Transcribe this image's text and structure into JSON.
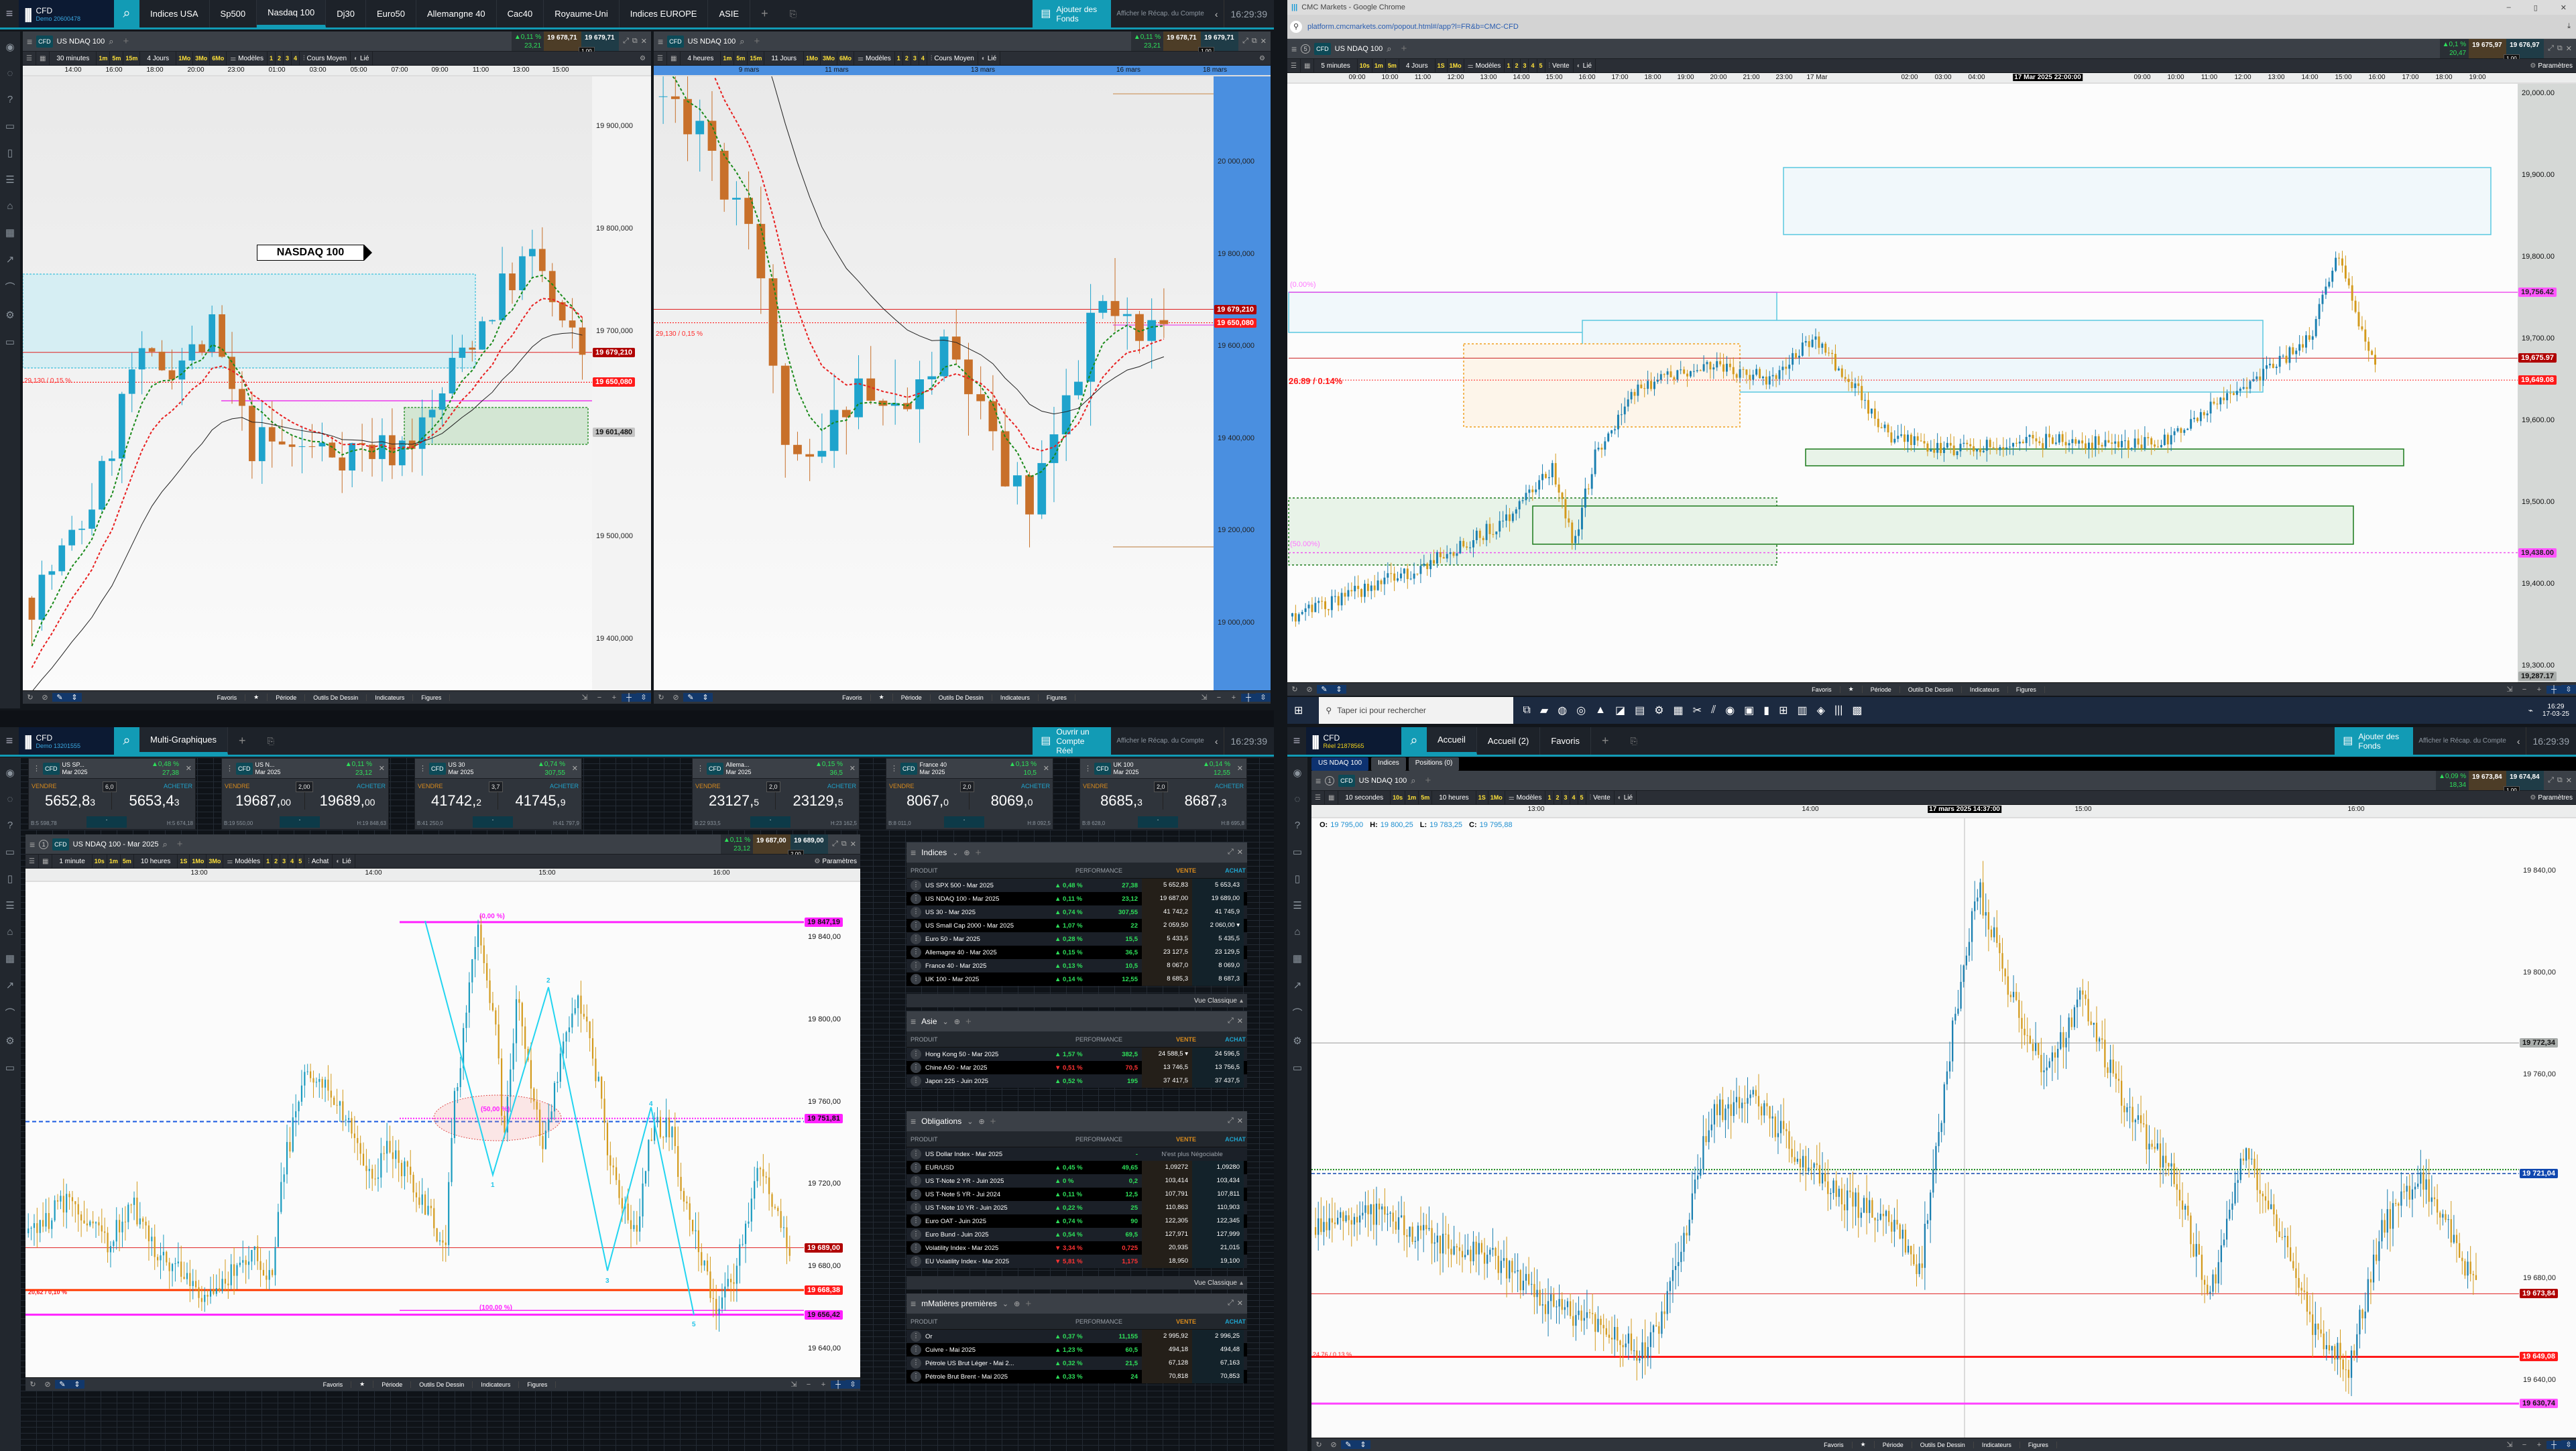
{
  "tl": {
    "brand": "CFD",
    "account": "Demo 20600478",
    "account_color": "#3aa7e0",
    "tabs": [
      "Indices USA",
      "Sp500",
      "Nasdaq 100",
      "Dj30",
      "Euro50",
      "Allemangne 40",
      "Cac40",
      "Royaume-Uni",
      "Indices EUROPE",
      "ASIE"
    ],
    "active_tab": 2,
    "fund_button": "Ajouter des Fonds",
    "account_summary": "Afficher le Récap. du Compte",
    "clock": "16:29:39"
  },
  "bl": {
    "brand": "CFD",
    "account": "Demo 13201555",
    "account_color": "#3aa7e0",
    "tabs": [
      "Multi-Graphiques"
    ],
    "active_tab": 0,
    "fund_button": "Ouvrir un Compte Réel",
    "account_summary": "Afficher le Récap. du Compte",
    "clock": "16:29:39"
  },
  "br": {
    "brand": "CFD",
    "account": "Réel 21878565",
    "account_color": "#f2d21b",
    "tabs": [
      "Accueil",
      "Accueil (2)",
      "Favoris"
    ],
    "active_tab": 0,
    "fund_button": "Ajouter des Fonds",
    "account_summary": "Afficher le Récap. du Compte",
    "clock": "16:29:39",
    "subtabs": [
      "US NDAQ 100",
      "Indices",
      "Positions (0)"
    ]
  },
  "browser": {
    "title": "CMC Markets - Google Chrome",
    "url": "platform.cmcmarkets.com/popout.html#/app?l=FR&b=CMC-CFD"
  },
  "taskbar": {
    "search_placeholder": "Taper ici pour rechercher",
    "time": "16:29",
    "date": "17-03-25"
  },
  "chart_toolbar": [
    "Favoris",
    "Période",
    "Outils De Dessin",
    "Indicateurs",
    "Figures"
  ],
  "colors": {
    "accent": "#129bb5",
    "up_candle": "#1fa3cc",
    "down_candle": "#c8702a",
    "gain": "#2ee05a",
    "loss": "#ff3333",
    "magenta": "#ff33ff"
  },
  "charts": {
    "c1": {
      "number": "",
      "product": "US NDAQ 100",
      "change": "▲0,11 %",
      "points": "23,21",
      "sell": "19 678,71",
      "buy": "19 679,71",
      "qty": "1,00",
      "period": "30 minutes",
      "intervals": [
        "1m",
        "5m",
        "15m"
      ],
      "range": "4 Jours",
      "ranges": [
        "1Mo",
        "3Mo",
        "6Mo"
      ],
      "models": "Modèles",
      "numbers": [
        "1",
        "2",
        "3",
        "4"
      ],
      "price_type": "Cours Moyen",
      "linked": "Lié",
      "settings": "",
      "time_labels": [
        "14:00",
        "16:00",
        "18:00",
        "20:00",
        "23:00",
        "01:00",
        "03:00",
        "05:00",
        "07:00",
        "09:00",
        "11:00",
        "13:00",
        "15:00"
      ],
      "time_highlight": "",
      "axis_labels": [
        "19 900,000",
        "19 800,000",
        "19 700,000",
        "19 500,000",
        "19 400,000"
      ],
      "tags": [
        {
          "text": "19 679,210",
          "bg": "#b00000"
        },
        {
          "text": "19 650,080",
          "bg": "#ff1a1a"
        },
        {
          "text": "19 601,480",
          "bg": "#c4c4c4",
          "fg": "#111"
        }
      ],
      "notes": [
        {
          "text": "29,130 / 0,15 %",
          "color": "#ff2a2a"
        }
      ],
      "annotation": "NASDAQ 100"
    },
    "c2": {
      "number": "",
      "product": "US NDAQ 100",
      "change": "▲0,11 %",
      "points": "23,21",
      "sell": "19 678,71",
      "buy": "19 679,71",
      "qty": "1,00",
      "period": "4 heures",
      "intervals": [
        "1m",
        "5m",
        "15m"
      ],
      "range": "11 Jours",
      "ranges": [
        "1Mo",
        "3Mo",
        "6Mo"
      ],
      "models": "Modèles",
      "numbers": [
        "1",
        "2",
        "3",
        "4"
      ],
      "price_type": "Cours Moyen",
      "linked": "Lié",
      "settings": "",
      "time_labels": [
        "9 mars",
        "11 mars",
        "13 mars",
        "16 mars",
        "18 mars"
      ],
      "time_highlight": "",
      "axis_labels": [
        "20 000,000",
        "19 800,000",
        "19 600,000",
        "19 400,000",
        "19 200,000",
        "19 000,000"
      ],
      "tags": [
        {
          "text": "19 679,210",
          "bg": "#b00000"
        },
        {
          "text": "19 650,080",
          "bg": "#ff1a1a"
        }
      ],
      "notes": [
        {
          "text": "29,130 / 0,15 %",
          "color": "#ff2a2a"
        }
      ]
    },
    "c3": {
      "number": "5",
      "product": "US NDAQ 100",
      "change": "▲0,1 %",
      "points": "20,47",
      "sell": "19 675,97",
      "buy": "19 676,97",
      "qty": "1,00",
      "period": "5 minutes",
      "intervals": [
        "10s",
        "1m",
        "5m"
      ],
      "range": "4 Jours",
      "ranges": [
        "1S",
        "1Mo"
      ],
      "models": "Modèles",
      "numbers": [
        "1",
        "2",
        "3",
        "4",
        "5"
      ],
      "price_type": "Vente",
      "linked": "Lié",
      "settings": "Paramètres",
      "time_labels": [
        "09:00",
        "10:00",
        "11:00",
        "12:00",
        "13:00",
        "14:00",
        "15:00",
        "16:00",
        "17:00",
        "18:00",
        "19:00",
        "20:00",
        "21:00",
        "23:00",
        "17 Mar",
        "02:00",
        "03:00",
        "04:00",
        "09:00",
        "10:00",
        "11:00",
        "12:00",
        "13:00",
        "14:00",
        "15:00",
        "16:00",
        "17:00",
        "18:00",
        "19:00"
      ],
      "time_highlight": "17 Mar 2025 22:00:00",
      "axis_labels": [
        "20,000.00",
        "19,900.00",
        "19,800.00",
        "19,700.00",
        "19,600.00",
        "19,500.00",
        "19,400.00",
        "19,300.00"
      ],
      "tags": [
        {
          "text": "19,756.42",
          "bg": "#ff55ff",
          "fg": "#222"
        },
        {
          "text": "19,675.97",
          "bg": "#b00000"
        },
        {
          "text": "19,649.08",
          "bg": "#ff1a1a"
        },
        {
          "text": "19,438.00",
          "bg": "#ff55ff",
          "fg": "#222"
        },
        {
          "text": "19,287.17",
          "bg": "#a9adab",
          "fg": "#111"
        }
      ],
      "notes": [
        {
          "text": "(0.00%)",
          "color": "#ff77ff"
        },
        {
          "text": "26.89 / 0.14%",
          "color": "#ff1a1a"
        },
        {
          "text": "(50.00%)",
          "color": "#ff77ff"
        }
      ]
    },
    "c4": {
      "number": "1",
      "product": "US NDAQ 100 - Mar 2025",
      "change": "▲0,11 %",
      "points": "23,12",
      "sell": "19 687,00",
      "buy": "19 689,00",
      "qty": "2,00",
      "period": "1 minute",
      "intervals": [
        "10s",
        "1m",
        "5m"
      ],
      "range": "10 heures",
      "ranges": [
        "1S",
        "1Mo",
        "3Mo"
      ],
      "models": "Modèles",
      "numbers": [
        "1",
        "2",
        "3",
        "4",
        "5"
      ],
      "price_type": "Achat",
      "linked": "Lié",
      "settings": "Paramètres",
      "time_labels": [
        "13:00",
        "14:00",
        "15:00",
        "16:00"
      ],
      "time_highlight": "",
      "axis_labels": [
        "19 840,00",
        "19 800,00",
        "19 760,00",
        "19 720,00",
        "19 680,00",
        "19 640,00"
      ],
      "tags": [
        {
          "text": "19 847,19",
          "bg": "#ff22ff",
          "fg": "#111"
        },
        {
          "text": "19 751,81",
          "bg": "#ff22ff",
          "fg": "#111"
        },
        {
          "text": "19 689,00",
          "bg": "#b00000"
        },
        {
          "text": "19 668,38",
          "bg": "#ff1a1a"
        },
        {
          "text": "19 656,42",
          "bg": "#ff22ff",
          "fg": "#111"
        }
      ],
      "notes": [
        {
          "text": "(0,00 %)",
          "color": "#ff22ff"
        },
        {
          "text": "(50,00 %)",
          "color": "#ff22ff"
        },
        {
          "text": "(100,00 %)",
          "color": "#ff22ff"
        },
        {
          "text": "20,62 / 0,10 %",
          "color": "#ff1a1a"
        }
      ],
      "wave_labels": [
        "1",
        "2",
        "3",
        "4",
        "5"
      ]
    },
    "c5": {
      "number": "1",
      "product": "US NDAQ 100",
      "change": "▲0,09 %",
      "points": "18,34",
      "sell": "19 673,84",
      "buy": "19 674,84",
      "qty": "1,00",
      "period": "10 secondes",
      "intervals": [
        "10s",
        "1m",
        "5m"
      ],
      "range": "10 heures",
      "ranges": [
        "1S",
        "1Mo"
      ],
      "models": "Modèles",
      "numbers": [
        "1",
        "2",
        "3",
        "4",
        "5"
      ],
      "price_type": "Vente",
      "linked": "Lié",
      "settings": "Paramètres",
      "time_labels": [
        "13:00",
        "14:00",
        "15:00",
        "16:00"
      ],
      "time_highlight": "17 mars 2025 14:37:00",
      "axis_labels": [
        "19 840,00",
        "19 800,00",
        "19 760,00",
        "19 680,00",
        "19 640,00"
      ],
      "tags": [
        {
          "text": "19 772,34",
          "bg": "#a9adab",
          "fg": "#111"
        },
        {
          "text": "19 721,04",
          "bg": "#1048b0"
        },
        {
          "text": "19 673,84",
          "bg": "#b00000"
        },
        {
          "text": "19 649,08",
          "bg": "#ff1a1a"
        },
        {
          "text": "19 630,74",
          "bg": "#ff55ff",
          "fg": "#111"
        }
      ],
      "notes": [
        {
          "text": "24,76 / 0,13 %",
          "color": "#ff1a1a"
        }
      ],
      "ohlc": {
        "o_label": "O:",
        "o": "19 795,00",
        "h_label": "H:",
        "h": "19 800,25",
        "l_label": "L:",
        "l": "19 783,25",
        "c_label": "C:",
        "c": "19 795,88"
      }
    }
  },
  "tiles": [
    {
      "name": "US SP...",
      "expiry": "Mar 2025",
      "change": "▲0,48 %",
      "points": "27,38",
      "sell_label": "VENDRE",
      "buy_label": "ACHETER",
      "spread": "6,0",
      "sell_int": "5652,8",
      "sell_dec": "3",
      "buy_int": "5653,4",
      "buy_dec": "3",
      "low": "B:5 598,78",
      "high": "H:5 674,18"
    },
    {
      "name": "US N...",
      "expiry": "Mar 2025",
      "change": "▲0,11 %",
      "points": "23,12",
      "sell_label": "VENDRE",
      "buy_label": "ACHETER",
      "spread": "2,00",
      "sell_int": "19687,",
      "sell_dec": "00",
      "buy_int": "19689,",
      "buy_dec": "00",
      "low": "B:19 550,00",
      "high": "H:19 848,63"
    },
    {
      "name": "US 30",
      "expiry": "Mar 2025",
      "change": "▲0,74 %",
      "points": "307,55",
      "sell_label": "VENDRE",
      "buy_label": "ACHETER",
      "spread": "3,7",
      "sell_int": "41742,",
      "sell_dec": "2",
      "buy_int": "41745,",
      "buy_dec": "9",
      "low": "B:41 250,0",
      "high": "H:41 797,9"
    },
    {
      "name": "Allema...",
      "expiry": "Mar 2025",
      "change": "▲0,15 %",
      "points": "36,5",
      "sell_label": "VENDRE",
      "buy_label": "ACHETER",
      "spread": "2,0",
      "sell_int": "23127,",
      "sell_dec": "5",
      "buy_int": "23129,",
      "buy_dec": "5",
      "low": "B:22 933,5",
      "high": "H:23 162,5"
    },
    {
      "name": "France 40",
      "expiry": "Mar 2025",
      "change": "▲0,13 %",
      "points": "10,5",
      "sell_label": "VENDRE",
      "buy_label": "ACHETER",
      "spread": "2,0",
      "sell_int": "8067,",
      "sell_dec": "0",
      "buy_int": "8069,",
      "buy_dec": "0",
      "low": "B:8 011,0",
      "high": "H:8 092,5"
    },
    {
      "name": "UK 100",
      "expiry": "Mar 2025",
      "change": "▲0,14 %",
      "points": "12,55",
      "sell_label": "VENDRE",
      "buy_label": "ACHETER",
      "spread": "2,0",
      "sell_int": "8685,",
      "sell_dec": "3",
      "buy_int": "8687,",
      "buy_dec": "3",
      "low": "B:8 628,0",
      "high": "H:8 695,8"
    }
  ],
  "list_columns": {
    "product": "PRODUIT",
    "performance": "PERFORMANCE",
    "sell": "VENTE",
    "buy": "ACHAT"
  },
  "lists": [
    {
      "title": "Indices",
      "footer": "Vue Classique",
      "rows": [
        {
          "name": "US SPX 500 - Mar 2025",
          "perf": "▲ 0,48 %",
          "points": "27,38",
          "sell": "5 652,83",
          "buy": "5 653,43",
          "dir": "up"
        },
        {
          "name": "US NDAQ 100 - Mar 2025",
          "perf": "▲ 0,11 %",
          "points": "23,12",
          "sell": "19 687,00",
          "buy": "19 689,00",
          "dir": "up"
        },
        {
          "name": "US 30 - Mar 2025",
          "perf": "▲ 0,74 %",
          "points": "307,55",
          "sell": "41 742,2",
          "buy": "41 745,9",
          "dir": "up"
        },
        {
          "name": "US Small Cap 2000 - Mar 2025",
          "perf": "▲ 1,07 %",
          "points": "22",
          "sell": "2 059,50",
          "buy": "2 060,00 ▾",
          "dir": "up"
        },
        {
          "name": "Euro 50 - Mar 2025",
          "perf": "▲ 0,28 %",
          "points": "15,5",
          "sell": "5 433,5",
          "buy": "5 435,5",
          "dir": "up"
        },
        {
          "name": "Allemagne 40 - Mar 2025",
          "perf": "▲ 0,15 %",
          "points": "36,5",
          "sell": "23 127,5",
          "buy": "23 129,5",
          "dir": "up"
        },
        {
          "name": "France 40 - Mar 2025",
          "perf": "▲ 0,13 %",
          "points": "10,5",
          "sell": "8 067,0",
          "buy": "8 069,0",
          "dir": "up"
        },
        {
          "name": "UK 100 - Mar 2025",
          "perf": "▲ 0,14 %",
          "points": "12,55",
          "sell": "8 685,3",
          "buy": "8 687,3",
          "dir": "up"
        }
      ]
    },
    {
      "title": "Asie",
      "footer": "",
      "rows": [
        {
          "name": "Hong Kong 50 - Mar 2025",
          "perf": "▲ 1,57 %",
          "points": "382,5",
          "sell": "24 588,5 ▾",
          "buy": "24 596,5",
          "dir": "up"
        },
        {
          "name": "Chine A50 - Mar 2025",
          "perf": "▼ 0,51 %",
          "points": "70,5",
          "sell": "13 746,5",
          "buy": "13 756,5",
          "dir": "dn"
        },
        {
          "name": "Japon 225 - Juin 2025",
          "perf": "▲ 0,52 %",
          "points": "195",
          "sell": "37 417,5",
          "buy": "37 437,5",
          "dir": "up"
        }
      ]
    },
    {
      "title": "Obligations",
      "footer": "Vue Classique",
      "rows": [
        {
          "name": "US Dollar Index - Mar 2025",
          "perf": "",
          "points": "-",
          "note": "N'est plus Négociable",
          "dir": "up"
        },
        {
          "name": "EUR/USD",
          "perf": "▲ 0,45 %",
          "points": "49,65",
          "sell": "1,09272",
          "buy": "1,09280",
          "dir": "up"
        },
        {
          "name": "US T-Note 2 YR - Juin 2025",
          "perf": "▲ 0 %",
          "points": "0,2",
          "sell": "103,414",
          "buy": "103,434",
          "dir": "up"
        },
        {
          "name": "US T-Note 5 YR - Jui 2024",
          "perf": "▲ 0,11 %",
          "points": "12,5",
          "sell": "107,791",
          "buy": "107,811",
          "dir": "up"
        },
        {
          "name": "US T-Note 10 YR - Juin 2025",
          "perf": "▲ 0,22 %",
          "points": "25",
          "sell": "110,863",
          "buy": "110,903",
          "dir": "up"
        },
        {
          "name": "Euro OAT - Juin 2025",
          "perf": "▲ 0,74 %",
          "points": "90",
          "sell": "122,305",
          "buy": "122,345",
          "dir": "up"
        },
        {
          "name": "Euro Bund - Juin 2025",
          "perf": "▲ 0,54 %",
          "points": "69,5",
          "sell": "127,971",
          "buy": "127,999",
          "dir": "up"
        },
        {
          "name": "Volatility Index - Mar 2025",
          "perf": "▼ 3,34 %",
          "points": "0,725",
          "sell": "20,935",
          "buy": "21,015",
          "dir": "dn"
        },
        {
          "name": "EU Volatility Index - Mar 2025",
          "perf": "▼ 5,81 %",
          "points": "1,175",
          "sell": "18,950",
          "buy": "19,100",
          "dir": "dn"
        }
      ]
    },
    {
      "title": "mMatières premières",
      "footer": "",
      "rows": [
        {
          "name": "Or",
          "perf": "▲ 0,37 %",
          "points": "11,155",
          "sell": "2 995,92",
          "buy": "2 996,25",
          "dir": "up"
        },
        {
          "name": "Cuivre - Mai 2025",
          "perf": "▲ 1,23 %",
          "points": "60,5",
          "sell": "494,18",
          "buy": "494,48",
          "dir": "up"
        },
        {
          "name": "Pétrole US Brut Léger - Mai 2...",
          "perf": "▲ 0,32 %",
          "points": "21,5",
          "sell": "67,128",
          "buy": "67,163",
          "dir": "up"
        },
        {
          "name": "Pétrole Brut Brent - Mai 2025",
          "perf": "▲ 0,33 %",
          "points": "24",
          "sell": "70,818",
          "buy": "70,853",
          "dir": "up"
        }
      ]
    }
  ]
}
